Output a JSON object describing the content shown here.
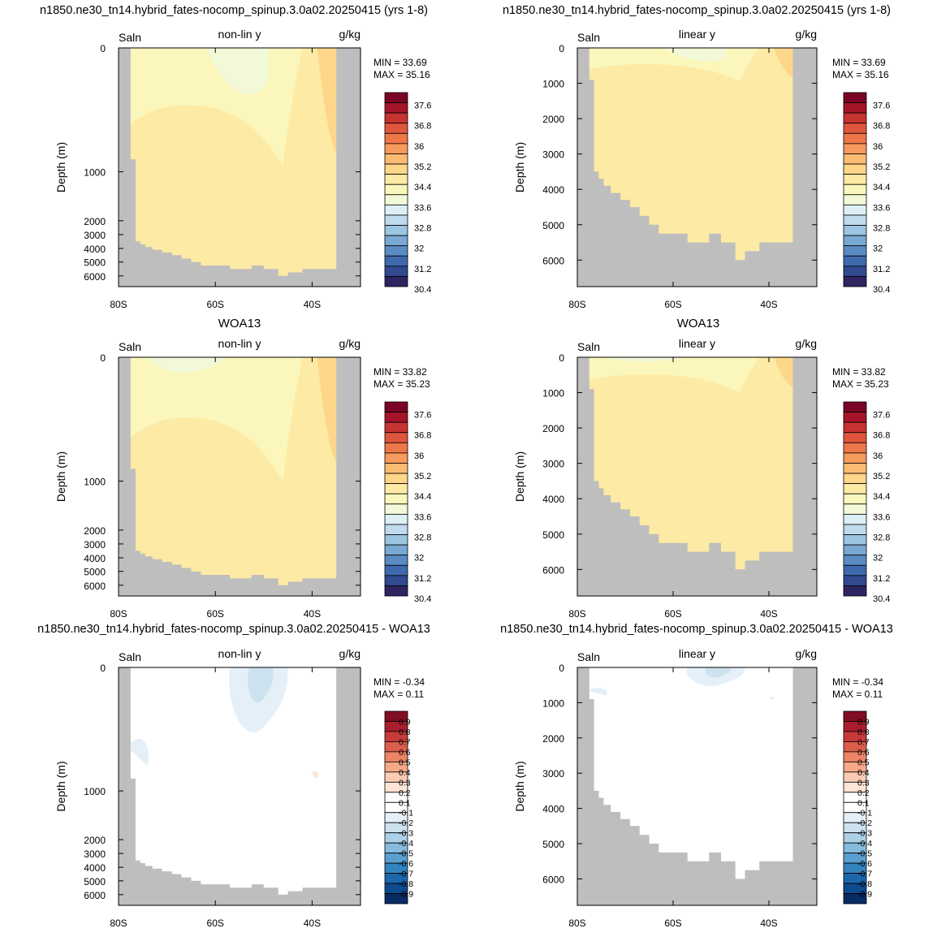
{
  "figure": {
    "row_titles": [
      "n1850.ne30_tn14.hybrid_fates-nocomp_spinup.3.0a02.20250415 (yrs 1-8)",
      "WOA13",
      "n1850.ne30_tn14.hybrid_fates-nocomp_spinup.3.0a02.20250415 - WOA13"
    ]
  },
  "colors": {
    "land": "#bebebe",
    "salinity_levels": [
      "#2e2460",
      "#30498f",
      "#3f69ad",
      "#5a8cc4",
      "#79a8d3",
      "#9bc5e1",
      "#bfdbec",
      "#dceff5",
      "#f2f9d8",
      "#fbf7bc",
      "#fdeaa4",
      "#fdd68a",
      "#fcbb73",
      "#f79a5d",
      "#ee774a",
      "#e0563d",
      "#c73331",
      "#a51428",
      "#7a0425"
    ],
    "difference_levels": [
      "#082b63",
      "#0e4a8e",
      "#1c66ab",
      "#3383bf",
      "#5a9fcf",
      "#85bbdc",
      "#acd0e6",
      "#cde2ef",
      "#e4eff7",
      "#ffffff",
      "#ffffff",
      "#fde4d6",
      "#fbcab2",
      "#f6a889",
      "#ec8466",
      "#dc5d4c",
      "#c73a39",
      "#a91e2e",
      "#820e23"
    ]
  },
  "chart_data": [
    {
      "type": "heatmap",
      "panel": "model-nonlinear",
      "left_label": "Saln",
      "center_label": "non-lin y",
      "right_label": "g/kg",
      "ylabel": "Depth (m)",
      "xticks": [
        "80S",
        "60S",
        "40S"
      ],
      "yticks": [
        "0",
        "1000",
        "2000",
        "3000",
        "4000",
        "5000",
        "6000"
      ],
      "y_scale": "non-linear",
      "xlim": [
        -80,
        -30
      ],
      "ylim": [
        6750,
        0
      ],
      "min_label": "MIN =  33.69",
      "max_label": "MAX =  35.16",
      "colorbar_labels": [
        "37.6",
        "36.8",
        "36",
        "35.2",
        "34.4",
        "33.6",
        "32.8",
        "32",
        "31.2",
        "30.4"
      ]
    },
    {
      "type": "heatmap",
      "panel": "model-linear",
      "left_label": "Saln",
      "center_label": "linear y",
      "right_label": "g/kg",
      "ylabel": "Depth (m)",
      "xticks": [
        "80S",
        "60S",
        "40S"
      ],
      "yticks": [
        "0",
        "1000",
        "2000",
        "3000",
        "4000",
        "5000",
        "6000"
      ],
      "y_scale": "linear",
      "xlim": [
        -80,
        -30
      ],
      "ylim": [
        6750,
        0
      ],
      "min_label": "MIN =  33.69",
      "max_label": "MAX =  35.16",
      "colorbar_labels": [
        "37.6",
        "36.8",
        "36",
        "35.2",
        "34.4",
        "33.6",
        "32.8",
        "32",
        "31.2",
        "30.4"
      ]
    },
    {
      "type": "heatmap",
      "panel": "obs-nonlinear",
      "left_label": "Saln",
      "center_label": "non-lin y",
      "right_label": "g/kg",
      "ylabel": "Depth (m)",
      "xticks": [
        "80S",
        "60S",
        "40S"
      ],
      "yticks": [
        "0",
        "1000",
        "2000",
        "3000",
        "4000",
        "5000",
        "6000"
      ],
      "y_scale": "non-linear",
      "xlim": [
        -80,
        -30
      ],
      "ylim": [
        6750,
        0
      ],
      "min_label": "MIN =  33.82",
      "max_label": "MAX =  35.23",
      "colorbar_labels": [
        "37.6",
        "36.8",
        "36",
        "35.2",
        "34.4",
        "33.6",
        "32.8",
        "32",
        "31.2",
        "30.4"
      ]
    },
    {
      "type": "heatmap",
      "panel": "obs-linear",
      "left_label": "Saln",
      "center_label": "linear y",
      "right_label": "g/kg",
      "ylabel": "Depth (m)",
      "xticks": [
        "80S",
        "60S",
        "40S"
      ],
      "yticks": [
        "0",
        "1000",
        "2000",
        "3000",
        "4000",
        "5000",
        "6000"
      ],
      "y_scale": "linear",
      "xlim": [
        -80,
        -30
      ],
      "ylim": [
        6750,
        0
      ],
      "min_label": "MIN =  33.82",
      "max_label": "MAX =  35.23",
      "colorbar_labels": [
        "37.6",
        "36.8",
        "36",
        "35.2",
        "34.4",
        "33.6",
        "32.8",
        "32",
        "31.2",
        "30.4"
      ]
    },
    {
      "type": "heatmap",
      "panel": "diff-nonlinear",
      "left_label": "Saln",
      "center_label": "non-lin y",
      "right_label": "g/kg",
      "ylabel": "Depth (m)",
      "xticks": [
        "80S",
        "60S",
        "40S"
      ],
      "yticks": [
        "0",
        "1000",
        "2000",
        "3000",
        "4000",
        "5000",
        "6000"
      ],
      "y_scale": "non-linear",
      "xlim": [
        -80,
        -30
      ],
      "ylim": [
        6750,
        0
      ],
      "min_label": "MIN =  -0.34",
      "max_label": "MAX =   0.11",
      "colorbar_labels": [
        "0.9",
        "0.8",
        "0.7",
        "0.6",
        "0.5",
        "0.4",
        "0.3",
        "0.2",
        "0.1",
        "-0.1",
        "-0.2",
        "-0.3",
        "-0.4",
        "-0.5",
        "-0.6",
        "-0.7",
        "-0.8",
        "-0.9"
      ]
    },
    {
      "type": "heatmap",
      "panel": "diff-linear",
      "left_label": "Saln",
      "center_label": "linear y",
      "right_label": "g/kg",
      "ylabel": "Depth (m)",
      "xticks": [
        "80S",
        "60S",
        "40S"
      ],
      "yticks": [
        "0",
        "1000",
        "2000",
        "3000",
        "4000",
        "5000",
        "6000"
      ],
      "y_scale": "linear",
      "xlim": [
        -80,
        -30
      ],
      "ylim": [
        6750,
        0
      ],
      "min_label": "MIN =  -0.34",
      "max_label": "MAX =   0.11",
      "colorbar_labels": [
        "0.9",
        "0.8",
        "0.7",
        "0.6",
        "0.5",
        "0.4",
        "0.3",
        "0.2",
        "0.1",
        "-0.1",
        "-0.2",
        "-0.3",
        "-0.4",
        "-0.5",
        "-0.6",
        "-0.7",
        "-0.8",
        "-0.9"
      ]
    }
  ]
}
